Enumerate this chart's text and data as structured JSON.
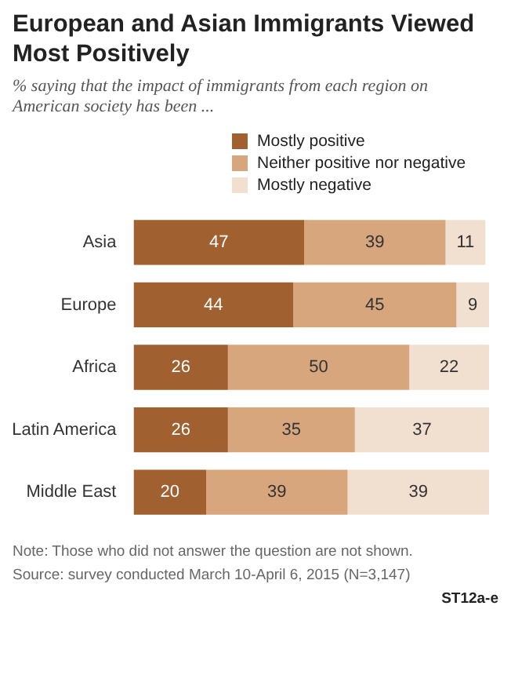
{
  "chart_data": {
    "type": "bar",
    "orientation": "horizontal",
    "stacked": true,
    "title": "European and Asian Immigrants Viewed Most Positively",
    "subtitle": "% saying that the impact of immigrants from each region on American society has been ...",
    "categories": [
      "Asia",
      "Europe",
      "Africa",
      "Latin America",
      "Middle East"
    ],
    "series": [
      {
        "name": "Mostly positive",
        "color": "#a0602f",
        "values": [
          47,
          44,
          26,
          26,
          20
        ]
      },
      {
        "name": "Neither positive nor negative",
        "color": "#d7a67c",
        "values": [
          39,
          45,
          50,
          35,
          39
        ]
      },
      {
        "name": "Mostly negative",
        "color": "#f1dfd0",
        "values": [
          11,
          9,
          22,
          37,
          39
        ]
      }
    ],
    "data_labels": true,
    "legend": "top",
    "annotations": [
      "Note: Those who did not answer the question are not shown.",
      "Source: survey conducted March 10-April 6, 2015 (N=3,147)",
      "ST12a-e"
    ]
  }
}
